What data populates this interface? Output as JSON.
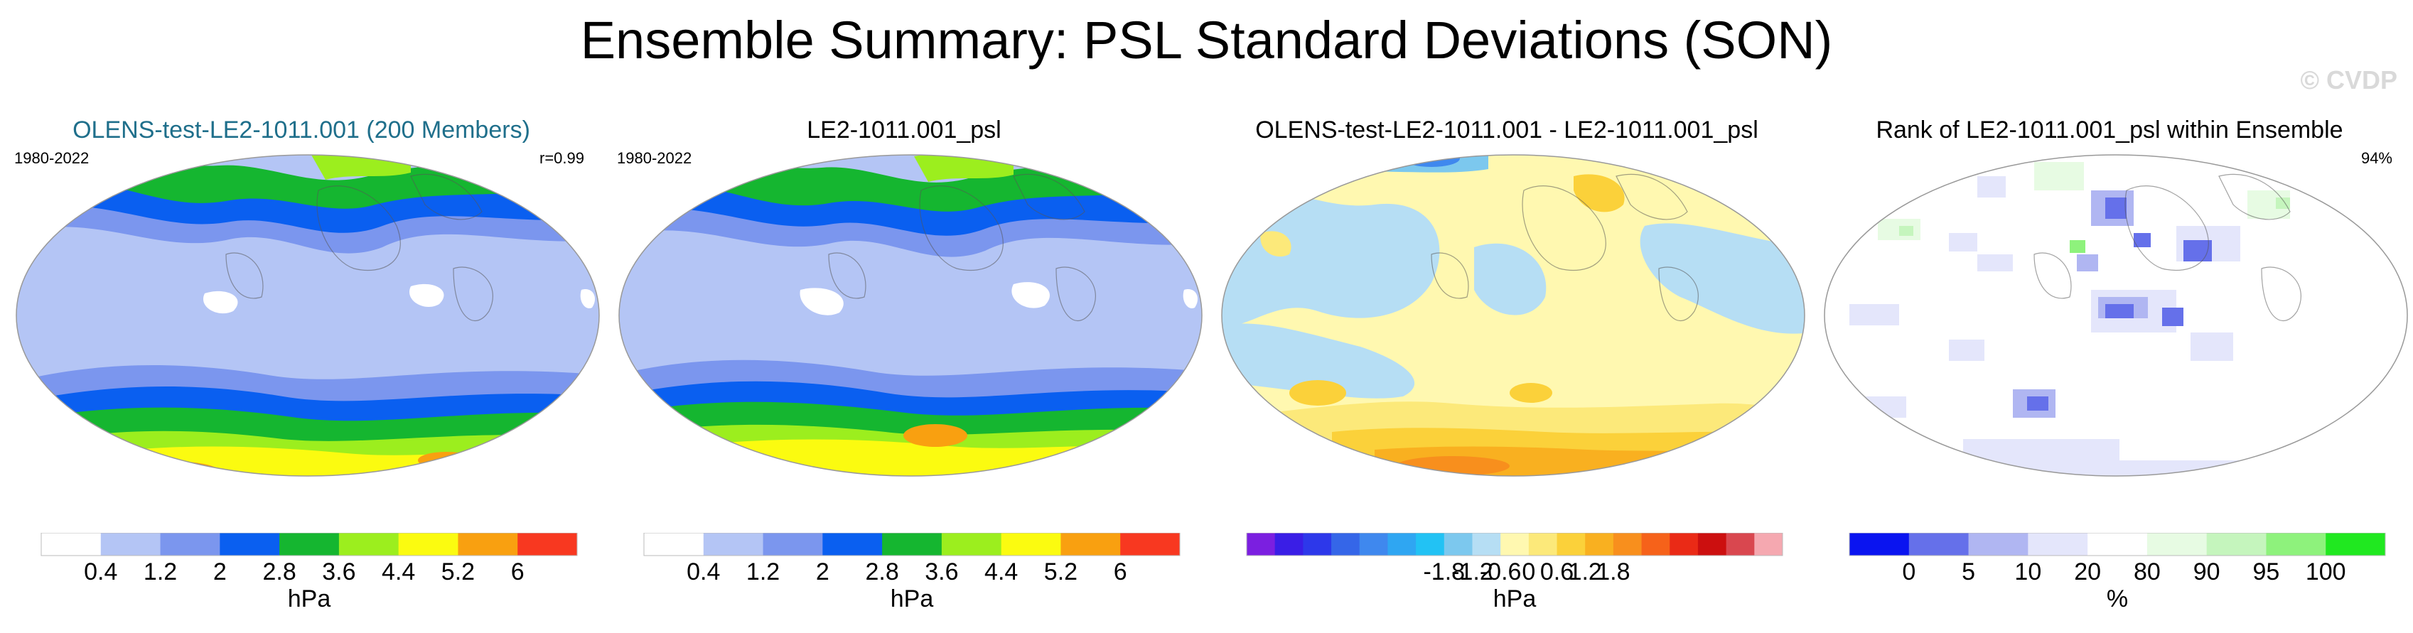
{
  "page_title": "Ensemble Summary: PSL Standard Deviations (SON)",
  "watermark": "© CVDP",
  "panels": [
    {
      "title": "OLENS-test-LE2-1011.001 (200 Members)",
      "title_color": "#1f6f8b",
      "years": "1980-2022",
      "stat": "r=0.99",
      "unit": "hPa"
    },
    {
      "title": "LE2-1011.001_psl",
      "title_color": "#000000",
      "years": "1980-2022",
      "stat": "",
      "unit": "hPa"
    },
    {
      "title": "OLENS-test-LE2-1011.001 - LE2-1011.001_psl",
      "title_color": "#000000",
      "years": "",
      "stat": "",
      "unit": "hPa"
    },
    {
      "title": "Rank of LE2-1011.001_psl within Ensemble",
      "title_color": "#000000",
      "years": "",
      "stat": "94%",
      "unit": "%"
    }
  ],
  "chart_data": [
    {
      "type": "heatmap",
      "title": "OLENS-test-LE2-1011.001 (200 Members)",
      "units": "hPa",
      "colorbar": {
        "colors": [
          "#ffffff",
          "#b4c5f5",
          "#7b96ee",
          "#0a5ff0",
          "#15b630",
          "#9cee1e",
          "#fbfb10",
          "#f9a010",
          "#f83820"
        ],
        "tick_labels": [
          "0.4",
          "1.2",
          "2",
          "2.8",
          "3.6",
          "4.4",
          "5.2",
          "6"
        ]
      }
    },
    {
      "type": "heatmap",
      "title": "LE2-1011.001_psl",
      "units": "hPa",
      "colorbar": {
        "colors": [
          "#ffffff",
          "#b4c5f5",
          "#7b96ee",
          "#0a5ff0",
          "#15b630",
          "#9cee1e",
          "#fbfb10",
          "#f9a010",
          "#f83820"
        ],
        "tick_labels": [
          "0.4",
          "1.2",
          "2",
          "2.8",
          "3.6",
          "4.4",
          "5.2",
          "6"
        ]
      }
    },
    {
      "type": "heatmap",
      "title": "OLENS-test-LE2-1011.001 - LE2-1011.001_psl",
      "units": "hPa",
      "colorbar": {
        "colors": [
          "#7b1fe0",
          "#3a1ee6",
          "#2d38ea",
          "#3566e8",
          "#3f88ee",
          "#2fa6f2",
          "#22c2f4",
          "#7cc8ee",
          "#b6def4",
          "#fff8b0",
          "#fce97a",
          "#fbd13a",
          "#f9b020",
          "#f88f1d",
          "#f6621a",
          "#ea2a16",
          "#cc0f0f",
          "#d9474f",
          "#f5a8b0"
        ],
        "tick_labels": [
          "-1.8",
          "-1.2",
          "-0.6",
          "0",
          "0.6",
          "1.2",
          "1.8"
        ]
      }
    },
    {
      "type": "heatmap",
      "title": "Rank of LE2-1011.001_psl within Ensemble",
      "units": "%",
      "colorbar": {
        "colors": [
          "#0a14f0",
          "#6570ea",
          "#b0b6f2",
          "#e4e6fb",
          "#ffffff",
          "#e7fbe3",
          "#c5f5bd",
          "#8ef27c",
          "#20e820"
        ],
        "tick_labels": [
          "0",
          "5",
          "10",
          "20",
          "80",
          "90",
          "95",
          "100"
        ]
      }
    }
  ]
}
